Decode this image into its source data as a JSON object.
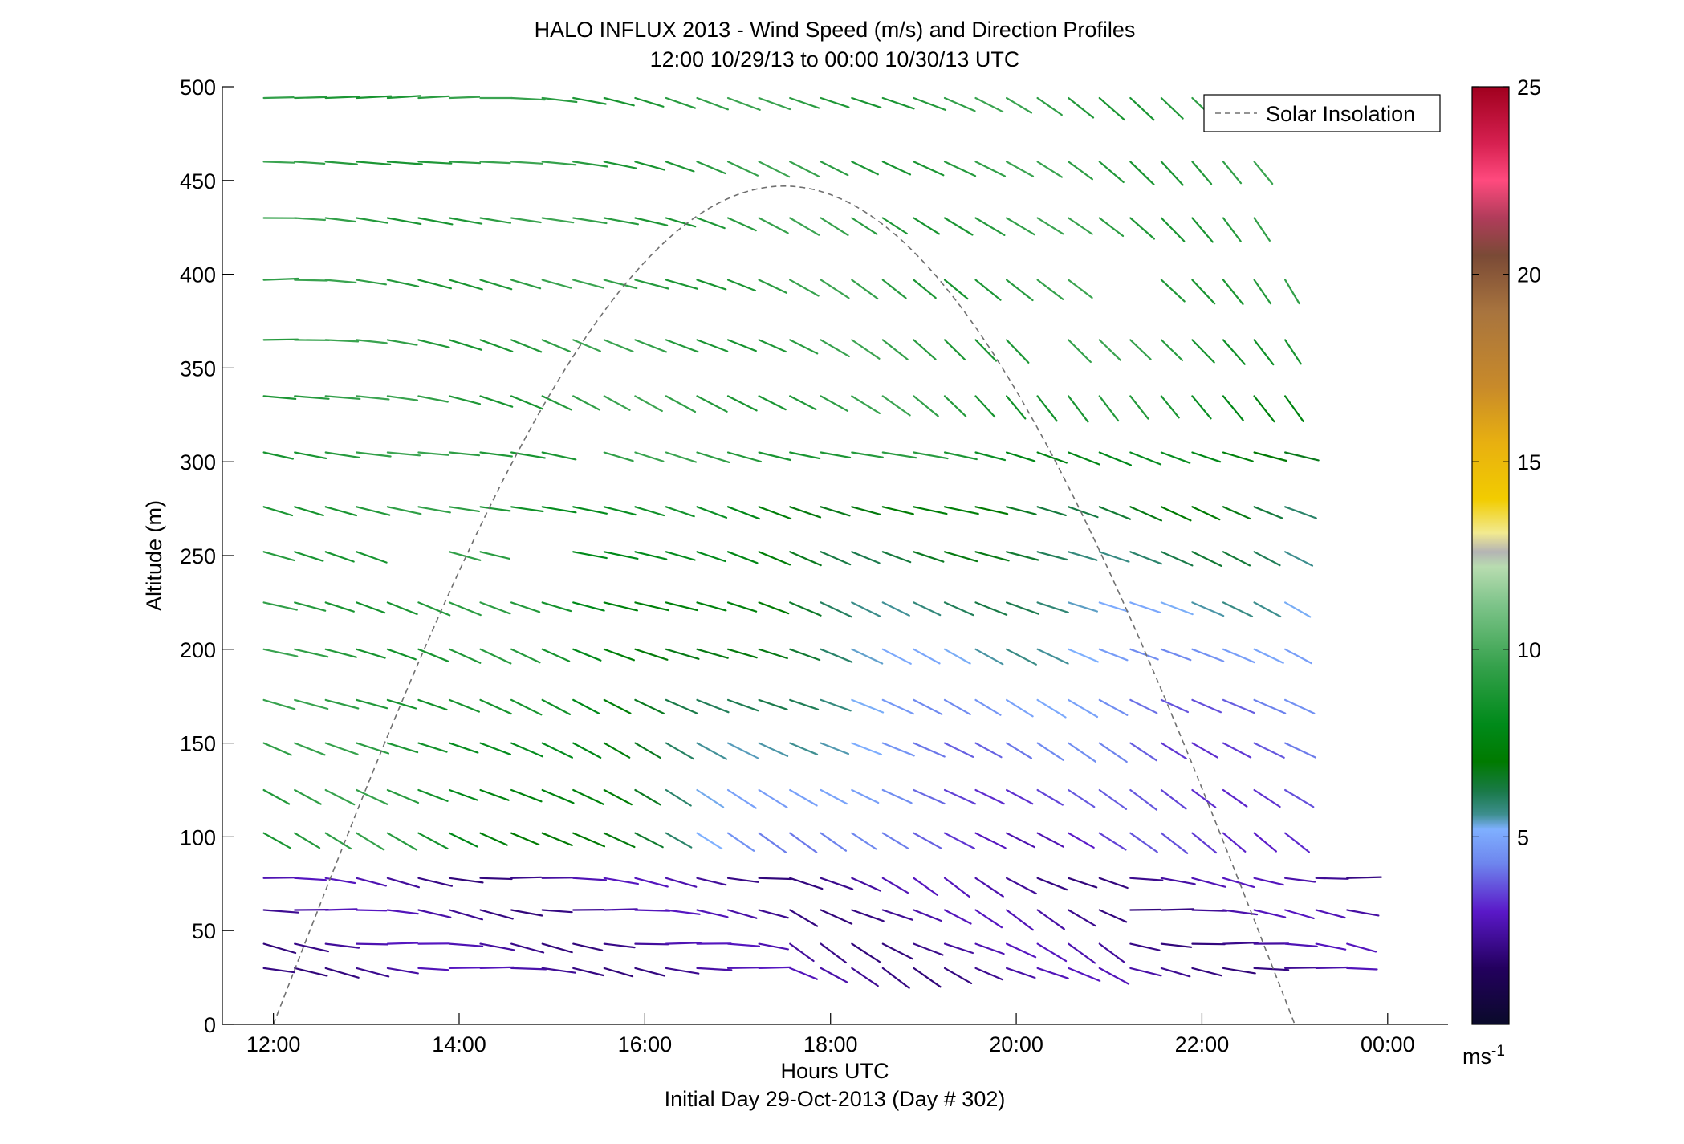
{
  "chart_data": {
    "type": "wind-barb-profile",
    "title": "HALO INFLUX 2013 - Wind Speed (m/s) and Direction Profiles",
    "subtitle": "12:00 10/29/13 to 00:00 10/30/13  UTC",
    "xlabel": "Hours UTC",
    "xlabel2": "Initial Day 29-Oct-2013 (Day # 302)",
    "ylabel": "Altitude (m)",
    "xlim": [
      11.45,
      24.65
    ],
    "ylim": [
      0,
      500
    ],
    "x_ticks": [
      {
        "value": 12,
        "label": "12:00"
      },
      {
        "value": 14,
        "label": "14:00"
      },
      {
        "value": 16,
        "label": "16:00"
      },
      {
        "value": 18,
        "label": "18:00"
      },
      {
        "value": 20,
        "label": "20:00"
      },
      {
        "value": 22,
        "label": "22:00"
      },
      {
        "value": 24,
        "label": "00:00"
      }
    ],
    "y_ticks": [
      0,
      50,
      100,
      150,
      200,
      250,
      300,
      350,
      400,
      450,
      500
    ],
    "legend": {
      "label": "Solar Insolation",
      "placement": "top-right",
      "style": "dashed",
      "color": "#707070"
    },
    "solar_insolation": {
      "start_hour": 12.0,
      "peak_hour": 17.5,
      "end_hour": 23.0,
      "peak_altitude": 447
    },
    "colorbar": {
      "label_main": "ms",
      "label_sup": "-1",
      "range": [
        0,
        25
      ],
      "ticks": [
        5,
        10,
        15,
        20,
        25
      ],
      "stops": [
        {
          "v": 0.0,
          "c": "#0a0a2a"
        },
        {
          "v": 1.5,
          "c": "#23005e"
        },
        {
          "v": 3.0,
          "c": "#5a18c8"
        },
        {
          "v": 4.3,
          "c": "#6e86ee"
        },
        {
          "v": 5.2,
          "c": "#7fb0ff"
        },
        {
          "v": 5.6,
          "c": "#3d8e8e"
        },
        {
          "v": 6.2,
          "c": "#1a7a4a"
        },
        {
          "v": 7.0,
          "c": "#007a00"
        },
        {
          "v": 8.0,
          "c": "#008a1a"
        },
        {
          "v": 9.5,
          "c": "#33a04a"
        },
        {
          "v": 11.2,
          "c": "#7ec48a"
        },
        {
          "v": 12.2,
          "c": "#b8dcb0"
        },
        {
          "v": 12.6,
          "c": "#b4b4b4"
        },
        {
          "v": 13.1,
          "c": "#f2ea90"
        },
        {
          "v": 14.0,
          "c": "#f2cc00"
        },
        {
          "v": 15.5,
          "c": "#e8b010"
        },
        {
          "v": 17.0,
          "c": "#c88a2a"
        },
        {
          "v": 19.0,
          "c": "#a8743e"
        },
        {
          "v": 20.5,
          "c": "#7a4a36"
        },
        {
          "v": 21.5,
          "c": "#b03c5a"
        },
        {
          "v": 22.5,
          "c": "#ff4a7e"
        },
        {
          "v": 23.5,
          "c": "#d62050"
        },
        {
          "v": 25.0,
          "c": "#a0001e"
        }
      ]
    }
  }
}
